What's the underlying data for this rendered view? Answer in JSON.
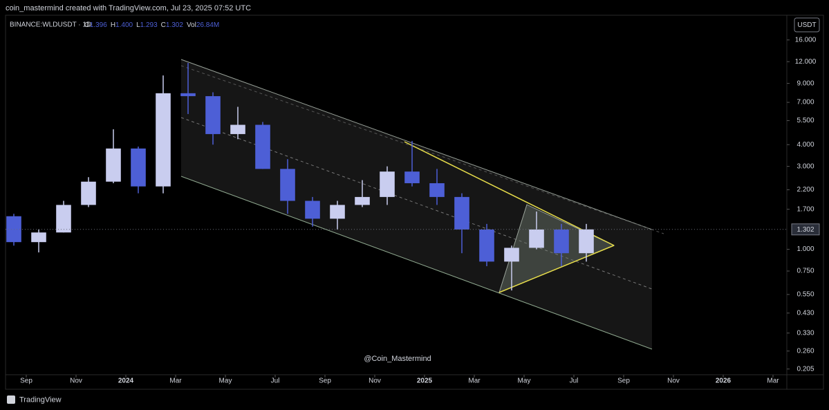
{
  "header": {
    "caption": "coin_mastermind created with TradingView.com, Jul 23, 2025 07:52 UTC"
  },
  "chart_data": {
    "type": "candlestick",
    "title": "BINANCE:WLDUSDT · 1D",
    "ohlc_legend": [
      {
        "key": "O",
        "value": "1.396"
      },
      {
        "key": "H",
        "value": "1.400"
      },
      {
        "key": "L",
        "value": "1.293"
      },
      {
        "key": "C",
        "value": "1.302"
      },
      {
        "key": "Vol",
        "value": "26.84M"
      }
    ],
    "currency": "USDT",
    "watermark": "@Coin_Mastermind",
    "x": [
      "2023-08",
      "2023-09",
      "2023-10",
      "2023-11",
      "2023-12",
      "2024-01",
      "2024-02",
      "2024-03",
      "2024-04",
      "2024-05",
      "2024-06",
      "2024-07",
      "2024-08",
      "2024-09",
      "2024-10",
      "2024-11",
      "2024-12",
      "2025-01",
      "2025-02",
      "2025-03",
      "2025-04",
      "2025-05",
      "2025-06",
      "2025-07"
    ],
    "open": [
      1.55,
      1.1,
      1.25,
      1.8,
      2.45,
      3.8,
      2.3,
      7.9,
      7.6,
      4.6,
      5.2,
      2.9,
      1.9,
      1.5,
      1.8,
      2.0,
      2.8,
      2.4,
      2.0,
      1.3,
      0.85,
      1.02,
      1.3,
      0.95
    ],
    "high": [
      1.6,
      1.3,
      1.9,
      2.6,
      4.9,
      3.9,
      10.0,
      11.8,
      8.0,
      6.6,
      5.4,
      3.3,
      2.0,
      1.9,
      2.5,
      3.0,
      4.2,
      2.9,
      2.1,
      1.4,
      1.05,
      1.65,
      1.4,
      1.4
    ],
    "low": [
      1.05,
      0.96,
      1.25,
      1.75,
      2.4,
      2.1,
      2.1,
      6.0,
      4.0,
      4.3,
      2.9,
      1.6,
      1.35,
      1.3,
      1.75,
      1.8,
      2.3,
      1.8,
      0.95,
      0.8,
      0.58,
      1.0,
      0.8,
      0.85
    ],
    "close": [
      1.1,
      1.25,
      1.8,
      2.45,
      3.8,
      2.3,
      7.9,
      7.6,
      4.6,
      5.2,
      2.9,
      1.9,
      1.5,
      1.8,
      2.0,
      2.8,
      2.4,
      2.0,
      1.3,
      0.85,
      1.02,
      1.3,
      0.95,
      1.302
    ],
    "up_color": "#c9cdef",
    "down_color": "#4d5fd6",
    "log_scale": true,
    "ylim": [
      0.19,
      22.2
    ],
    "yticks": [
      {
        "value": 0.205,
        "label": "0.205"
      },
      {
        "value": 0.26,
        "label": "0.260"
      },
      {
        "value": 0.33,
        "label": "0.330"
      },
      {
        "value": 0.43,
        "label": "0.430"
      },
      {
        "value": 0.55,
        "label": "0.550"
      },
      {
        "value": 0.75,
        "label": "0.750"
      },
      {
        "value": 1,
        "label": "1.000"
      },
      {
        "value": 1.7,
        "label": "1.700"
      },
      {
        "value": 2.2,
        "label": "2.200"
      },
      {
        "value": 3,
        "label": "3.000"
      },
      {
        "value": 4,
        "label": "4.000"
      },
      {
        "value": 5.5,
        "label": "5.500"
      },
      {
        "value": 7,
        "label": "7.000"
      },
      {
        "value": 9,
        "label": "9.000"
      },
      {
        "value": 12,
        "label": "12.000"
      },
      {
        "value": 16,
        "label": "16.000"
      }
    ],
    "last_price": {
      "value": 1.302,
      "label": "1.302"
    },
    "xlim": [
      "2023-08",
      "2026-03"
    ],
    "xticks": [
      {
        "value": "2023-09",
        "label": "Sep"
      },
      {
        "value": "2023-11",
        "label": "Nov"
      },
      {
        "value": "2024-01",
        "label": "2024"
      },
      {
        "value": "2024-03",
        "label": "Mar"
      },
      {
        "value": "2024-05",
        "label": "May"
      },
      {
        "value": "2024-07",
        "label": "Jul"
      },
      {
        "value": "2024-09",
        "label": "Sep"
      },
      {
        "value": "2024-11",
        "label": "Nov"
      },
      {
        "value": "2025-01",
        "label": "2025"
      },
      {
        "value": "2025-03",
        "label": "Mar"
      },
      {
        "value": "2025-05",
        "label": "May"
      },
      {
        "value": "2025-07",
        "label": "Jul"
      },
      {
        "value": "2025-09",
        "label": "Sep"
      },
      {
        "value": "2025-11",
        "label": "Nov"
      },
      {
        "value": "2026-01",
        "label": "2026"
      },
      {
        "value": "2026-03",
        "label": "Mar"
      }
    ]
  },
  "footer": {
    "brand": "TradingView"
  }
}
